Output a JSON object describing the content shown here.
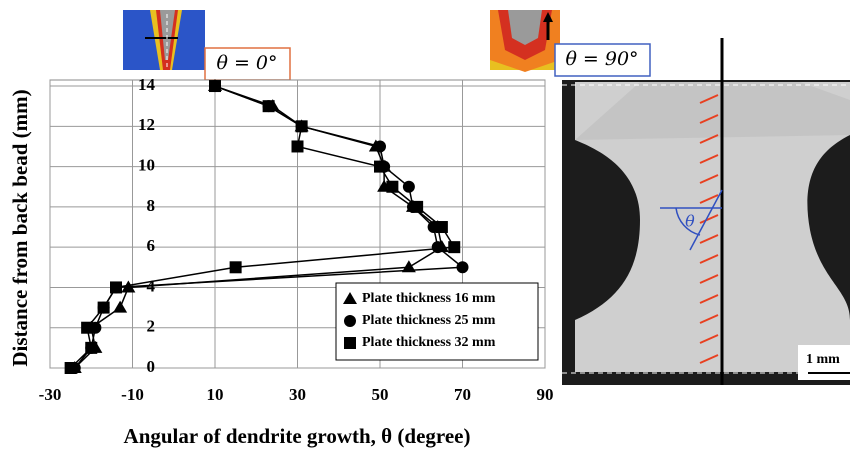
{
  "chart_data": {
    "type": "line",
    "xlabel": "Angular of dendrite growth, θ  (degree)",
    "ylabel": "Distance from back bead (mm)",
    "xlim": [
      -30,
      90
    ],
    "xticks": [
      -30,
      -10,
      10,
      30,
      50,
      70,
      90
    ],
    "ylim": [
      0,
      14.3
    ],
    "yticks": [
      0,
      2,
      4,
      6,
      8,
      10,
      12,
      14
    ],
    "grid": true,
    "legend": "lower right",
    "series": [
      {
        "name": "Plate thickness 16 mm",
        "marker": "triangle",
        "color": "#000000",
        "x": [
          -24,
          -19,
          -20,
          -13,
          -11,
          57,
          65,
          64,
          58,
          51,
          51,
          49,
          31,
          24,
          10
        ],
        "values": [
          0,
          1,
          2,
          3,
          4,
          5,
          6,
          7,
          8,
          9,
          10,
          11,
          12,
          13,
          14
        ]
      },
      {
        "name": "Plate thickness 25 mm",
        "marker": "circle",
        "color": "#000000",
        "x": [
          -24,
          -20,
          -19,
          -17,
          -14,
          70,
          64,
          63,
          58,
          57,
          51,
          50,
          31,
          23,
          10
        ],
        "values": [
          0,
          1,
          2,
          3,
          4,
          5,
          6,
          7,
          8,
          9,
          10,
          11,
          12,
          13,
          14
        ]
      },
      {
        "name": "Plate thickness 32 mm",
        "marker": "square",
        "color": "#000000",
        "x": [
          -25,
          -20,
          -21,
          -17,
          -14,
          15,
          68,
          65,
          59,
          53,
          50,
          30,
          31,
          23,
          10
        ],
        "values": [
          0,
          1,
          2,
          3,
          4,
          5,
          6,
          7,
          8,
          9,
          10,
          11,
          12,
          13,
          14
        ]
      }
    ],
    "annotations": [
      "θ = 0°",
      "θ = 90°",
      "θ",
      "1 mm"
    ]
  }
}
